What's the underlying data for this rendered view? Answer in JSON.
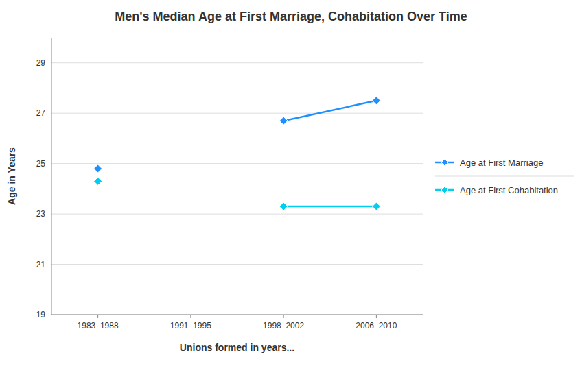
{
  "chart_data": {
    "type": "line",
    "title": "Men's Median Age at First Marriage, Cohabitation Over Time",
    "xlabel": "Unions formed in years...",
    "ylabel": "Age in Years",
    "categories": [
      "1983–1988",
      "1991–1995",
      "1998–2002",
      "2006–2010"
    ],
    "series": [
      {
        "name": "Age at First Marriage",
        "color": "#1E90FF",
        "values": [
          24.8,
          null,
          26.7,
          27.5
        ]
      },
      {
        "name": "Age at First Cohabitation",
        "color": "#00CFEF",
        "values": [
          24.3,
          null,
          23.3,
          23.3
        ]
      }
    ],
    "ylim": [
      19,
      30
    ],
    "yticks": [
      19,
      21,
      23,
      25,
      27,
      29
    ],
    "grid": true,
    "legend": "right",
    "marker": "diamond",
    "line_style": "solid"
  }
}
